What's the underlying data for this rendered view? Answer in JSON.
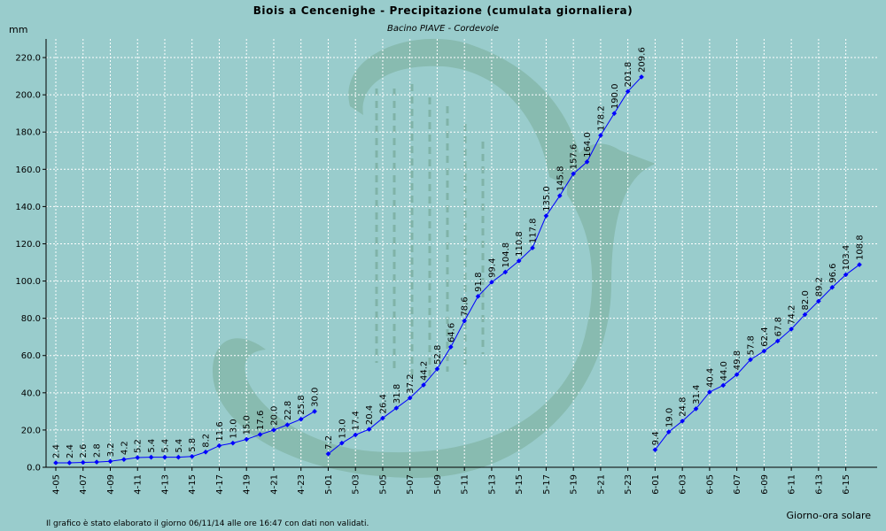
{
  "chart_data": {
    "type": "line",
    "title": "Biois a Cencenighe - Precipitazione (cumulata giornaliera)",
    "subtitle": "Bacino PIAVE - Cordevole",
    "ylabel": "mm",
    "xlabel": "Giorno-ora solare",
    "ylim": [
      0,
      230
    ],
    "yticks": [
      "0.0",
      "20.0",
      "40.0",
      "60.0",
      "80.0",
      "100.0",
      "120.0",
      "140.0",
      "160.0",
      "180.0",
      "200.0",
      "220.0"
    ],
    "xticks": [
      "4-05",
      "4-07",
      "4-09",
      "4-11",
      "4-13",
      "4-15",
      "4-17",
      "4-19",
      "4-21",
      "4-23",
      "5-01",
      "5-03",
      "5-05",
      "5-07",
      "5-09",
      "5-11",
      "5-13",
      "5-15",
      "5-17",
      "5-19",
      "5-21",
      "5-23",
      "6-01",
      "6-03",
      "6-05",
      "6-07",
      "6-09",
      "6-11",
      "6-13",
      "6-15"
    ],
    "grid": true,
    "line_color": "#0000ff",
    "series": [
      {
        "x": [
          "4-05",
          "4-06",
          "4-07",
          "4-08",
          "4-09",
          "4-10",
          "4-11",
          "4-12",
          "4-13",
          "4-14",
          "4-15",
          "4-16",
          "4-17",
          "4-18",
          "4-19",
          "4-20",
          "4-21",
          "4-22",
          "4-23",
          "4-24"
        ],
        "values": [
          2.4,
          2.4,
          2.6,
          2.8,
          3.2,
          4.2,
          5.2,
          5.4,
          5.4,
          5.4,
          5.8,
          8.2,
          11.6,
          13.0,
          15.0,
          17.6,
          20.0,
          22.8,
          25.8,
          30.0
        ],
        "labels": [
          "2.4",
          "2.4",
          "2.6",
          "2.8",
          "3.2",
          "4.2",
          "5.2",
          "5.4",
          "5.4",
          "5.4",
          "5.8",
          "8.2",
          "11.6",
          "13.0",
          "15.0",
          "17.6",
          "20.0",
          "22.8",
          "25.8",
          "30.0"
        ]
      },
      {
        "x": [
          "5-01",
          "5-02",
          "5-03",
          "5-04",
          "5-05",
          "5-06",
          "5-07",
          "5-08",
          "5-09",
          "5-10",
          "5-11",
          "5-12",
          "5-13",
          "5-14",
          "5-15",
          "5-16",
          "5-17",
          "5-18",
          "5-19",
          "5-20",
          "5-21",
          "5-22",
          "5-23",
          "5-24"
        ],
        "values": [
          7.2,
          13.0,
          17.4,
          20.4,
          26.4,
          31.8,
          37.2,
          44.2,
          52.8,
          64.6,
          78.6,
          91.8,
          99.4,
          104.8,
          110.8,
          117.8,
          135.0,
          145.8,
          157.6,
          164.0,
          178.2,
          190.0,
          201.8,
          209.6
        ],
        "labels": [
          "7.2",
          "13.0",
          "17.4",
          "20.4",
          "26.4",
          "31.8",
          "37.2",
          "44.2",
          "52.8",
          "64.6",
          "78.6",
          "91.8",
          "99.4",
          "104.8",
          "110.8",
          "117.8",
          "135.0",
          "145.8",
          "157.6",
          "164.0",
          "178.2",
          "190.0",
          "201.8",
          "209.6"
        ]
      },
      {
        "x": [
          "6-01",
          "6-02",
          "6-03",
          "6-04",
          "6-05",
          "6-06",
          "6-07",
          "6-08",
          "6-09",
          "6-10",
          "6-11",
          "6-12",
          "6-13",
          "6-14",
          "6-15",
          "6-16"
        ],
        "values": [
          9.4,
          19.0,
          24.8,
          31.4,
          40.4,
          44.0,
          49.8,
          57.8,
          62.4,
          67.8,
          74.2,
          82.0,
          89.2,
          96.6,
          103.4,
          108.8
        ],
        "labels": [
          "9.4",
          "19.0",
          "24.8",
          "31.4",
          "40.4",
          "44.0",
          "49.8",
          "57.8",
          "62.4",
          "67.8",
          "74.2",
          "82.0",
          "89.2",
          "96.6",
          "103.4",
          "108.8"
        ]
      }
    ]
  },
  "footer": "Il grafico è stato elaborato il giorno 06/11/14 alle ore 16:47 con dati non validati."
}
